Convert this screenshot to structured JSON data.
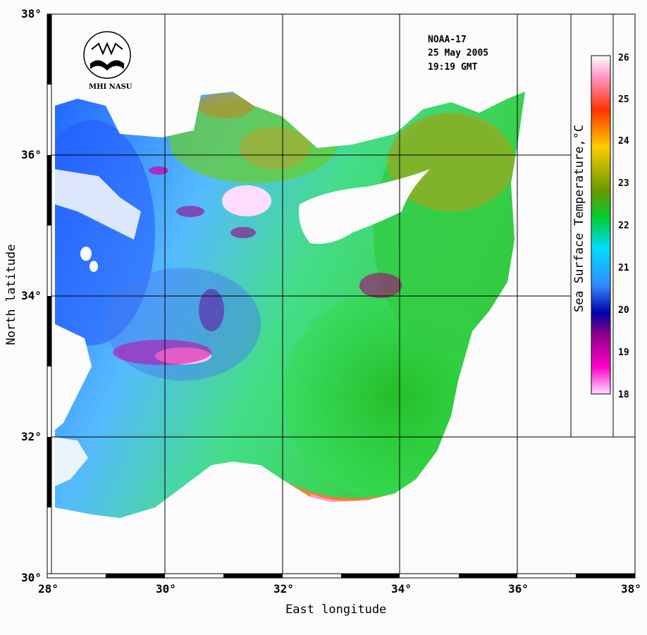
{
  "satellite": "NOAA-17",
  "date": "25 May 2005",
  "time": "19:19 GMT",
  "logo_text": "MHI NASU",
  "colorbar_title": "Sea Surface Temperature,°C",
  "colorbar_ticks": [
    "26",
    "25",
    "24",
    "23",
    "22",
    "21",
    "20",
    "19",
    "18"
  ],
  "colorbar_colors": [
    "#ffffff",
    "#ff99cc",
    "#ff3300",
    "#ffcc00",
    "#669900",
    "#00cc33",
    "#00ddff",
    "#3388ff",
    "#0000aa",
    "#880088",
    "#ff00cc",
    "#ffddff"
  ],
  "x_axis_title": "East longitude",
  "y_axis_title": "North latitude",
  "x_ticks": [
    "28°",
    "30°",
    "32°",
    "34°",
    "36°",
    "38°"
  ],
  "y_ticks": [
    "38°",
    "36°",
    "34°",
    "32°",
    "30°"
  ],
  "colors": {
    "land": "#fbfbfb",
    "warm_sea": "#22cc33",
    "cool_sea": "#44aaff",
    "coast_warm": "#ff5500",
    "cold_patch": "#cc0099"
  }
}
